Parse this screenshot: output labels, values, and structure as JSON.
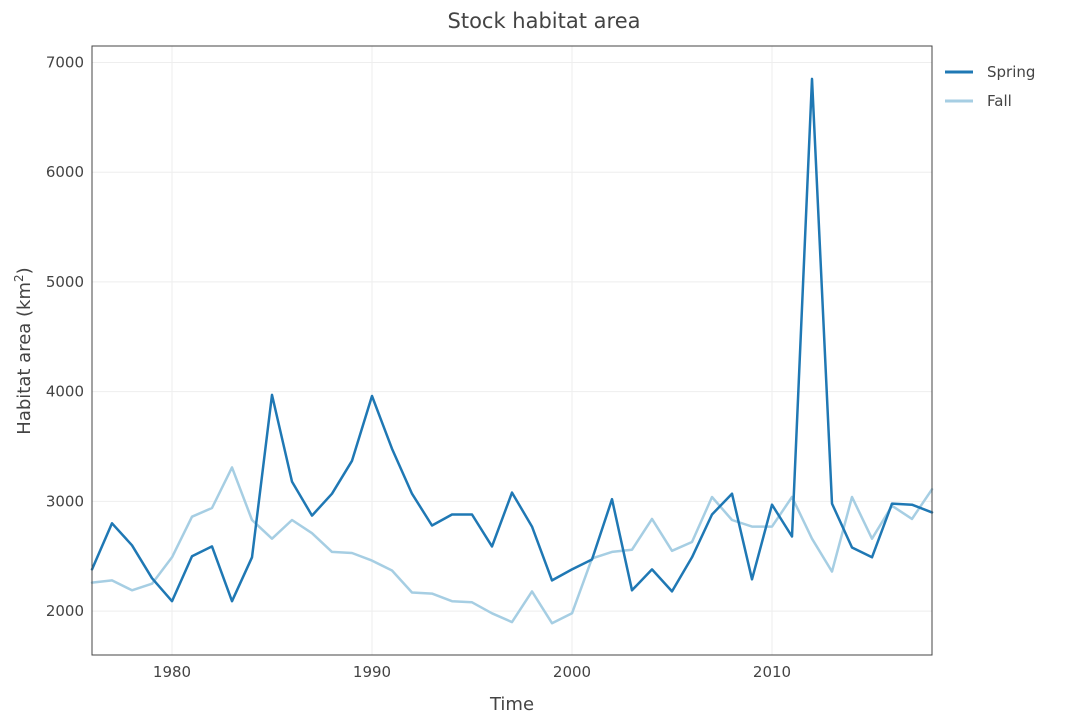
{
  "chart_data": {
    "type": "line",
    "title": "Stock habitat area",
    "xlabel": "Time",
    "ylabel": "Habitat area (km",
    "ylabel_sup": "2",
    "ylabel_close": ")",
    "xlim": [
      1976,
      2018
    ],
    "ylim": [
      1600,
      7150
    ],
    "x_ticks": [
      1980,
      1990,
      2000,
      2010
    ],
    "y_ticks": [
      2000,
      3000,
      4000,
      5000,
      6000,
      7000
    ],
    "grid": true,
    "legend_position": "top-right",
    "x": [
      1976,
      1977,
      1978,
      1979,
      1980,
      1981,
      1982,
      1983,
      1984,
      1985,
      1986,
      1987,
      1988,
      1989,
      1990,
      1991,
      1992,
      1993,
      1994,
      1995,
      1996,
      1997,
      1998,
      1999,
      2000,
      2001,
      2002,
      2003,
      2004,
      2005,
      2006,
      2007,
      2008,
      2009,
      2010,
      2011,
      2012,
      2013,
      2014,
      2015,
      2016,
      2017,
      2018
    ],
    "series": [
      {
        "name": "Spring",
        "color": "#1f78b4",
        "values": [
          2380,
          2800,
          2600,
          2300,
          2090,
          2500,
          2590,
          2090,
          2490,
          3970,
          3180,
          2870,
          3070,
          3370,
          3960,
          3480,
          3070,
          2780,
          2880,
          2880,
          2590,
          3080,
          2770,
          2280,
          2380,
          2470,
          3020,
          2190,
          2380,
          2180,
          2490,
          2880,
          3070,
          2290,
          2970,
          2680,
          6850,
          2980,
          2580,
          2490,
          2980,
          2970,
          2900
        ]
      },
      {
        "name": "Fall",
        "color": "#a6cee3",
        "values": [
          2260,
          2280,
          2190,
          2250,
          2490,
          2860,
          2940,
          3310,
          2830,
          2660,
          2830,
          2710,
          2540,
          2530,
          2460,
          2370,
          2170,
          2160,
          2090,
          2080,
          1980,
          1900,
          2180,
          1890,
          1980,
          2480,
          2540,
          2560,
          2840,
          2550,
          2630,
          3040,
          2830,
          2770,
          2770,
          3040,
          2660,
          2360,
          3040,
          2660,
          2960,
          2840,
          3110
        ]
      }
    ]
  }
}
